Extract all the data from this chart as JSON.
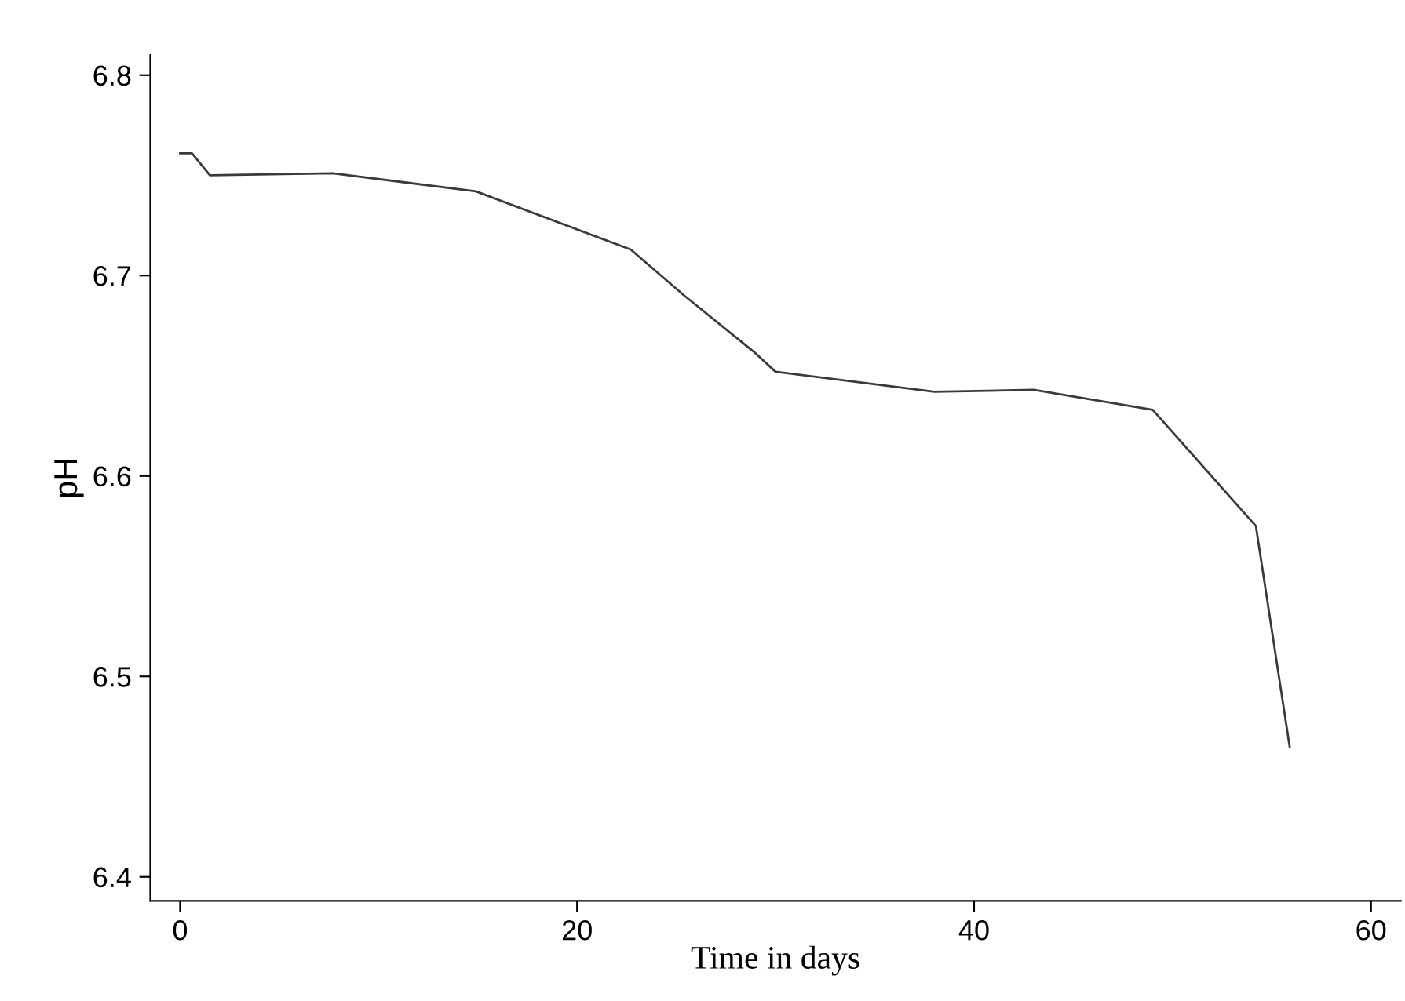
{
  "chart_data": {
    "type": "line",
    "xlabel": "Time in days",
    "ylabel": "pH",
    "x": [
      0,
      0.6,
      1.5,
      7.7,
      14.9,
      22.7,
      25.4,
      28.9,
      30,
      38,
      43,
      49,
      54.2,
      55.9
    ],
    "series": [
      {
        "color": "#3a3a3a",
        "values": [
          6.761,
          6.761,
          6.75,
          6.751,
          6.742,
          6.713,
          6.69,
          6.662,
          6.652,
          6.642,
          6.643,
          6.633,
          6.575,
          6.465
        ]
      }
    ],
    "xlim": [
      -1.5,
      61.5
    ],
    "ylim": [
      6.388,
      6.81
    ],
    "xticks": [
      0,
      20,
      40,
      60
    ],
    "yticks": [
      6.4,
      6.5,
      6.6,
      6.7,
      6.8
    ],
    "grid": false,
    "legend": false,
    "marker": "none",
    "line_style": "solid"
  }
}
